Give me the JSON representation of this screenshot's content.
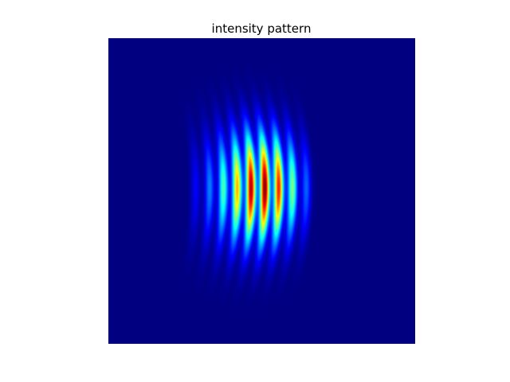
{
  "chart_data": {
    "type": "heatmap",
    "title": "intensity pattern",
    "xlabel": "",
    "ylabel": "",
    "colormap": "jet",
    "background_color": "#000080",
    "axes_visible": false,
    "grid": false,
    "field": {
      "description_of_values": "normalized intensity 0-1 on unit image grid",
      "fringe_count": 9,
      "fringe_u": [
        0.285,
        0.33,
        0.375,
        0.42,
        0.465,
        0.51,
        0.555,
        0.6,
        0.645
      ],
      "fringe_peak": [
        0.12,
        0.25,
        0.45,
        0.7,
        0.95,
        1.0,
        0.85,
        0.5,
        0.22
      ],
      "fringe_halfwidth_u": 0.011,
      "fringe_curvature": 0.35,
      "fringe_vertical_sigma": 0.12,
      "center_v": 0.49
    }
  }
}
